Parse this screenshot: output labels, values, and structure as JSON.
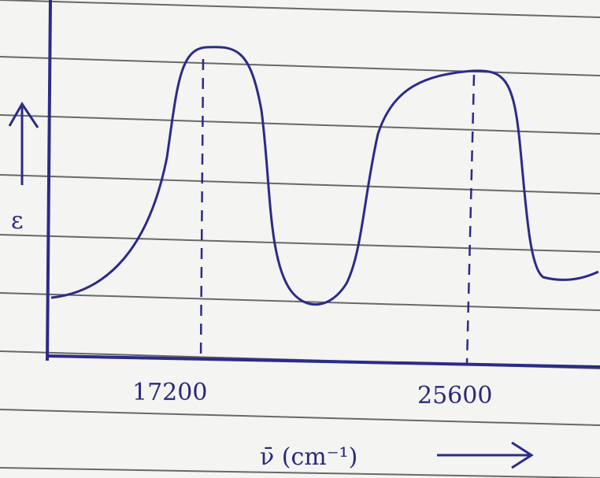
{
  "axes": {
    "y_label": "ε",
    "x_label": "ν̄ (cm⁻¹)"
  },
  "peaks": [
    {
      "label": "17200"
    },
    {
      "label": "25600"
    }
  ]
}
